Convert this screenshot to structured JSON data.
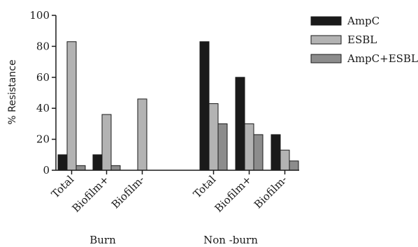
{
  "chart_data": {
    "type": "bar",
    "ylabel": "% Resistance",
    "ylim": [
      0,
      100
    ],
    "yticks": [
      "0",
      "20",
      "40",
      "60",
      "80",
      "100"
    ],
    "legend_position": "top-right",
    "groups": [
      {
        "label": "Burn",
        "categories": [
          "Total",
          "Biofilm+",
          "Biofilm-"
        ],
        "series": [
          {
            "name": "AmpC",
            "color": "#1a1a1a",
            "values": [
              10,
              10,
              0
            ]
          },
          {
            "name": "ESBL",
            "color": "#b3b3b3",
            "values": [
              83,
              36,
              46
            ]
          },
          {
            "name": "AmpC+ESBL",
            "color": "#8c8c8c",
            "values": [
              3,
              3,
              0
            ]
          }
        ]
      },
      {
        "label": "Non -burn",
        "categories": [
          "Total",
          "Biofilm+",
          "Biofilm-"
        ],
        "series": [
          {
            "name": "AmpC",
            "color": "#1a1a1a",
            "values": [
              83,
              60,
              23
            ]
          },
          {
            "name": "ESBL",
            "color": "#b3b3b3",
            "values": [
              43,
              30,
              13
            ]
          },
          {
            "name": "AmpC+ESBL",
            "color": "#8c8c8c",
            "values": [
              30,
              23,
              6
            ]
          }
        ]
      }
    ],
    "legend": [
      {
        "name": "AmpC",
        "color": "#1a1a1a"
      },
      {
        "name": "ESBL",
        "color": "#b3b3b3"
      },
      {
        "name": "AmpC+ESBL",
        "color": "#8c8c8c"
      }
    ]
  }
}
